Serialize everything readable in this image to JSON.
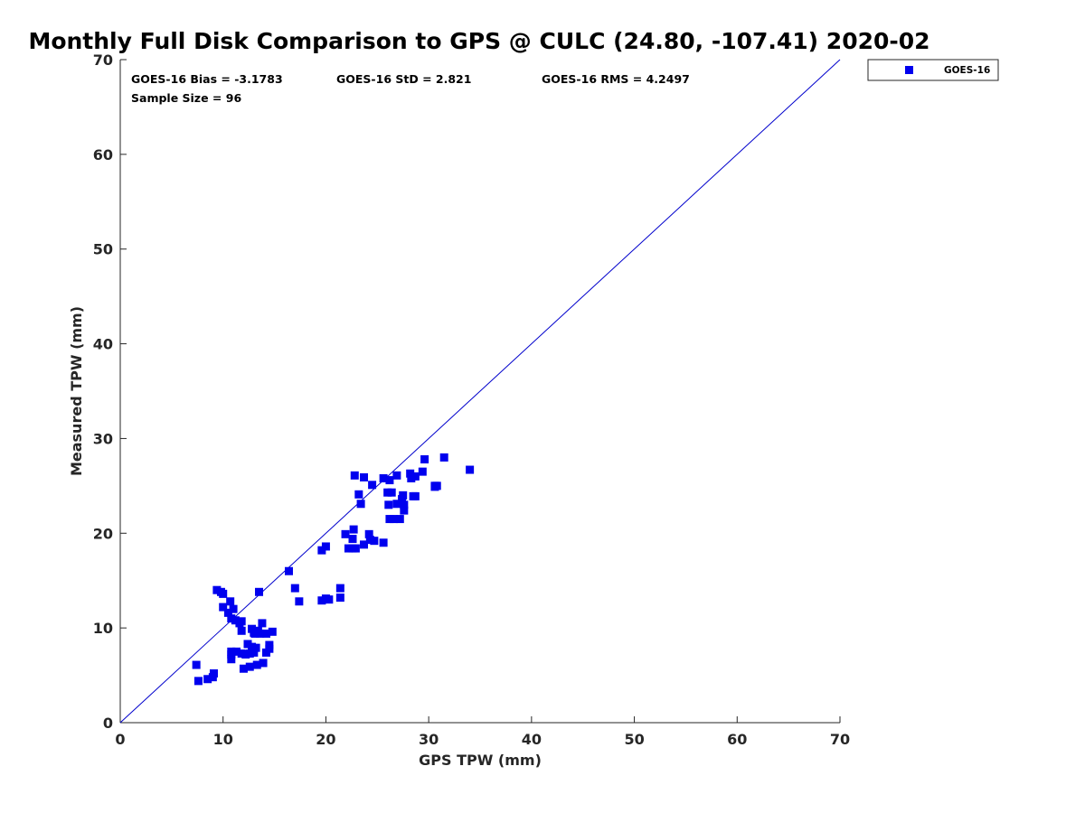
{
  "chart_data": {
    "type": "scatter",
    "title": "Monthly Full Disk Comparison to GPS @ CULC (24.80, -107.41) 2020-02",
    "xlabel": "GPS TPW (mm)",
    "ylabel": "Measured TPW (mm)",
    "xlim": [
      0,
      70
    ],
    "ylim": [
      0,
      70
    ],
    "xticks": [
      "0",
      "10",
      "20",
      "30",
      "40",
      "50",
      "60",
      "70"
    ],
    "yticks": [
      "0",
      "10",
      "20",
      "30",
      "40",
      "50",
      "60",
      "70"
    ],
    "grid": false,
    "legend_position": "outside-top-right",
    "one_to_one_line": true,
    "colors": {
      "series": "#0000ee",
      "line": "#0000cc",
      "axes": "#262626"
    },
    "stats": {
      "bias": "GOES-16 Bias = -3.1783",
      "std": "GOES-16 StD = 2.821",
      "rms": "GOES-16 RMS = 4.2497",
      "sample": "Sample Size = 96"
    },
    "series": [
      {
        "name": "GOES-16",
        "marker": "square",
        "points": [
          [
            7.4,
            6.1
          ],
          [
            7.6,
            4.4
          ],
          [
            8.5,
            4.6
          ],
          [
            9.0,
            4.8
          ],
          [
            9.1,
            5.2
          ],
          [
            9.4,
            14.0
          ],
          [
            9.8,
            13.8
          ],
          [
            10.0,
            13.6
          ],
          [
            10.0,
            12.2
          ],
          [
            10.5,
            11.6
          ],
          [
            10.7,
            12.8
          ],
          [
            10.8,
            11.0
          ],
          [
            11.0,
            12.0
          ],
          [
            10.8,
            7.5
          ],
          [
            10.8,
            7.2
          ],
          [
            10.8,
            6.7
          ],
          [
            11.3,
            7.5
          ],
          [
            11.2,
            10.8
          ],
          [
            11.6,
            10.5
          ],
          [
            11.8,
            10.7
          ],
          [
            11.8,
            9.7
          ],
          [
            11.8,
            7.3
          ],
          [
            12.0,
            5.7
          ],
          [
            12.2,
            7.2
          ],
          [
            12.4,
            8.3
          ],
          [
            12.6,
            7.3
          ],
          [
            12.6,
            5.9
          ],
          [
            12.8,
            9.9
          ],
          [
            12.8,
            8.0
          ],
          [
            13.0,
            9.5
          ],
          [
            13.0,
            7.4
          ],
          [
            13.1,
            9.4
          ],
          [
            13.2,
            7.9
          ],
          [
            13.3,
            6.1
          ],
          [
            13.4,
            9.7
          ],
          [
            13.5,
            13.8
          ],
          [
            13.6,
            9.4
          ],
          [
            13.8,
            10.5
          ],
          [
            13.9,
            6.3
          ],
          [
            14.2,
            9.4
          ],
          [
            14.2,
            7.4
          ],
          [
            14.5,
            7.8
          ],
          [
            14.5,
            8.2
          ],
          [
            14.8,
            9.6
          ],
          [
            16.4,
            16.0
          ],
          [
            17.0,
            14.2
          ],
          [
            17.4,
            12.8
          ],
          [
            19.6,
            18.2
          ],
          [
            19.6,
            12.9
          ],
          [
            20.0,
            18.6
          ],
          [
            20.0,
            13.1
          ],
          [
            20.3,
            13.0
          ],
          [
            21.4,
            14.2
          ],
          [
            21.4,
            13.2
          ],
          [
            21.9,
            19.9
          ],
          [
            22.2,
            18.4
          ],
          [
            22.6,
            18.4
          ],
          [
            22.6,
            19.4
          ],
          [
            22.7,
            20.4
          ],
          [
            22.8,
            26.1
          ],
          [
            22.9,
            18.4
          ],
          [
            23.2,
            24.1
          ],
          [
            23.4,
            23.1
          ],
          [
            23.7,
            25.9
          ],
          [
            23.7,
            18.8
          ],
          [
            24.2,
            19.9
          ],
          [
            24.3,
            19.3
          ],
          [
            24.5,
            25.1
          ],
          [
            24.7,
            19.2
          ],
          [
            25.6,
            25.8
          ],
          [
            25.6,
            19.0
          ],
          [
            26.0,
            24.3
          ],
          [
            26.1,
            23.0
          ],
          [
            26.2,
            25.6
          ],
          [
            26.2,
            21.5
          ],
          [
            26.4,
            24.3
          ],
          [
            26.6,
            21.5
          ],
          [
            26.9,
            26.1
          ],
          [
            26.9,
            23.1
          ],
          [
            27.2,
            21.5
          ],
          [
            27.4,
            23.6
          ],
          [
            27.5,
            24.0
          ],
          [
            27.6,
            23.0
          ],
          [
            27.6,
            22.4
          ],
          [
            28.2,
            26.3
          ],
          [
            28.3,
            25.8
          ],
          [
            28.5,
            23.9
          ],
          [
            28.7,
            23.9
          ],
          [
            28.7,
            26.0
          ],
          [
            29.4,
            26.5
          ],
          [
            29.6,
            27.8
          ],
          [
            30.6,
            25.0
          ],
          [
            30.8,
            25.0
          ],
          [
            31.5,
            28.0
          ],
          [
            34.0,
            26.7
          ],
          [
            30.6,
            24.9
          ]
        ]
      }
    ]
  }
}
